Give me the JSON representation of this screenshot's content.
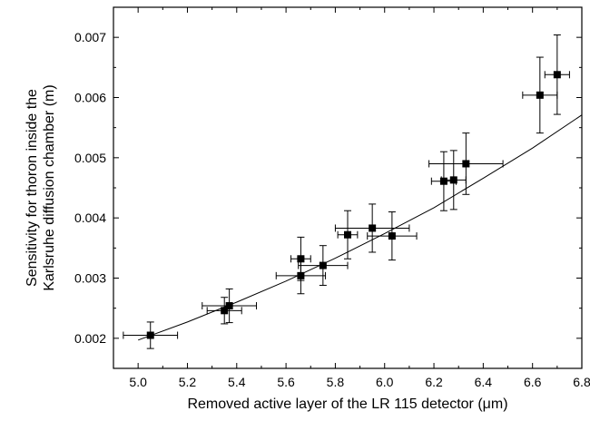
{
  "chart_data": {
    "type": "scatter",
    "title": "",
    "xlabel": "Removed active layer of the LR 115 detector (μm)",
    "ylabel_lines": [
      "Sensitivity for thoron inside the",
      "Karlsruhe diffusion chamber (m)"
    ],
    "xlim": [
      4.9,
      6.8
    ],
    "ylim": [
      0.0015,
      0.0075
    ],
    "x_ticks": [
      5.0,
      5.2,
      5.4,
      5.6,
      5.8,
      6.0,
      6.2,
      6.4,
      6.6,
      6.8
    ],
    "x_tick_labels": [
      "5.0",
      "5.2",
      "5.4",
      "5.6",
      "5.8",
      "6.0",
      "6.2",
      "6.4",
      "6.6",
      "6.8"
    ],
    "y_ticks": [
      0.002,
      0.003,
      0.004,
      0.005,
      0.006,
      0.007
    ],
    "y_tick_labels": [
      "0.002",
      "0.003",
      "0.004",
      "0.005",
      "0.006",
      "0.007"
    ],
    "grid": false,
    "series": [
      {
        "marker": "square",
        "points": [
          {
            "x": 5.05,
            "y": 0.00205,
            "xerr": 0.11,
            "yerr": 0.00022
          },
          {
            "x": 5.35,
            "y": 0.00246,
            "xerr": 0.07,
            "yerr": 0.00022
          },
          {
            "x": 5.37,
            "y": 0.00254,
            "xerr": 0.11,
            "yerr": 0.00028
          },
          {
            "x": 5.66,
            "y": 0.00304,
            "xerr": 0.1,
            "yerr": 0.0003
          },
          {
            "x": 5.66,
            "y": 0.00332,
            "xerr": 0.04,
            "yerr": 0.00036
          },
          {
            "x": 5.75,
            "y": 0.00321,
            "xerr": 0.1,
            "yerr": 0.00033
          },
          {
            "x": 5.85,
            "y": 0.00372,
            "xerr": 0.04,
            "yerr": 0.0004
          },
          {
            "x": 5.95,
            "y": 0.00383,
            "xerr": 0.15,
            "yerr": 0.0004
          },
          {
            "x": 6.03,
            "y": 0.0037,
            "xerr": 0.1,
            "yerr": 0.0004
          },
          {
            "x": 6.24,
            "y": 0.00461,
            "xerr": 0.05,
            "yerr": 0.00049
          },
          {
            "x": 6.28,
            "y": 0.00463,
            "xerr": 0.05,
            "yerr": 0.00049
          },
          {
            "x": 6.33,
            "y": 0.0049,
            "xerr": 0.15,
            "yerr": 0.00051
          },
          {
            "x": 6.63,
            "y": 0.00604,
            "xerr": 0.07,
            "yerr": 0.00063
          },
          {
            "x": 6.7,
            "y": 0.00638,
            "xerr": 0.05,
            "yerr": 0.00066
          }
        ]
      }
    ],
    "fit_line": {
      "type": "exponential",
      "x": [
        5.0,
        5.2,
        5.4,
        5.6,
        5.8,
        6.0,
        6.2,
        6.4,
        6.6,
        6.8
      ],
      "y": [
        0.00197,
        0.00227,
        0.0026,
        0.00295,
        0.00333,
        0.00374,
        0.00417,
        0.00466,
        0.00516,
        0.00571
      ]
    }
  }
}
